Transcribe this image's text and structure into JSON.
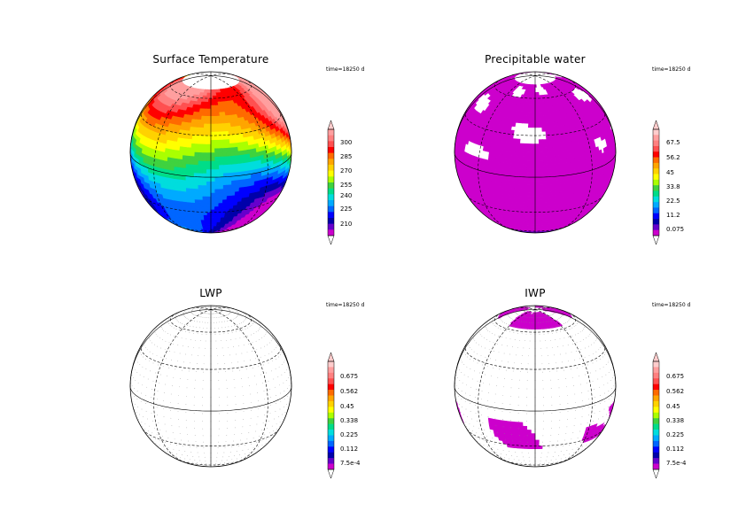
{
  "panels": [
    {
      "id": "surface-temperature",
      "title": "Surface Temperature",
      "time_label": "time=18250  d",
      "colorbar_ticks": [
        "300",
        "285",
        "270",
        "255",
        "240",
        "225",
        "210"
      ],
      "colors": [
        "#ff9f9f",
        "#ff8080",
        "#ff5050",
        "#ff0000",
        "#ff6a00",
        "#ffa500",
        "#ffd200",
        "#ffff00",
        "#aaff00",
        "#3fd23f",
        "#00dd88",
        "#00dddd",
        "#00aaff",
        "#0066ff",
        "#0000ff",
        "#0000aa",
        "#6600cc",
        "#cc00cc"
      ],
      "field": "temperature"
    },
    {
      "id": "precipitable-water",
      "title": "Precipitable water",
      "time_label": "time=18250  d",
      "colorbar_ticks": [
        "67.5",
        "56.2",
        "45",
        "33.8",
        "22.5",
        "11.2",
        "0.075"
      ],
      "colors": [
        "#ffcccc",
        "#ff9f9f",
        "#ff8080",
        "#ff5050",
        "#ff0000",
        "#ff6a00",
        "#ffa500",
        "#ffd200",
        "#ffff00",
        "#aaff00",
        "#3fd23f",
        "#00dd88",
        "#00dddd",
        "#00aaff",
        "#0066ff",
        "#0000ff",
        "#0000aa",
        "#6600cc",
        "#cc00cc"
      ],
      "field": "water"
    },
    {
      "id": "lwp",
      "title": "LWP",
      "time_label": "time=18250  d",
      "colorbar_ticks": [
        "0.675",
        "0.562",
        "0.45",
        "0.338",
        "0.225",
        "0.112",
        "7.5e-4"
      ],
      "colors": [
        "#ffcccc",
        "#ff9f9f",
        "#ff8080",
        "#ff5050",
        "#ff0000",
        "#ff6a00",
        "#ffa500",
        "#ffd200",
        "#ffff00",
        "#aaff00",
        "#3fd23f",
        "#00dd88",
        "#00dddd",
        "#00aaff",
        "#0066ff",
        "#0000ff",
        "#0000aa",
        "#6600cc",
        "#cc00cc"
      ],
      "field": "lwp"
    },
    {
      "id": "iwp",
      "title": "IWP",
      "time_label": "time=18250  d",
      "colorbar_ticks": [
        "0.675",
        "0.562",
        "0.45",
        "0.338",
        "0.225",
        "0.112",
        "7.5e-4"
      ],
      "colors": [
        "#ffcccc",
        "#ff9f9f",
        "#ff8080",
        "#ff5050",
        "#ff0000",
        "#ff6a00",
        "#ffa500",
        "#ffd200",
        "#ffff00",
        "#aaff00",
        "#3fd23f",
        "#00dd88",
        "#00dddd",
        "#00aaff",
        "#0066ff",
        "#0000ff",
        "#0000aa",
        "#6600cc",
        "#cc00cc"
      ],
      "field": "iwp"
    }
  ],
  "style": {
    "magenta": "#cc00cc",
    "grid": "#000000"
  }
}
